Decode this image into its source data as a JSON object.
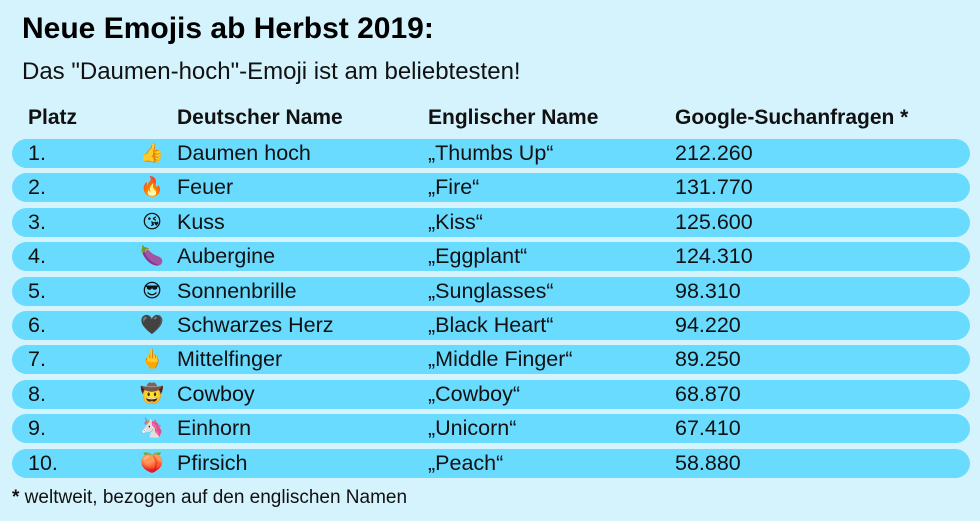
{
  "title": "Neue Emojis ab Herbst 2019:",
  "subtitle": "Das \"Daumen-hoch\"-Emoji ist am beliebtesten!",
  "chart_data": {
    "type": "table",
    "columns": [
      "Platz",
      "Deutscher Name",
      "Englischer Name",
      "Google-Suchanfragen *"
    ],
    "rows": [
      {
        "rank": "1.",
        "emoji": "👍",
        "emoji_icon": "thumbs-up-icon",
        "de": "Daumen hoch",
        "en": "„Thumbs Up“",
        "value": "212.260"
      },
      {
        "rank": "2.",
        "emoji": "🔥",
        "emoji_icon": "fire-icon",
        "de": "Feuer",
        "en": "„Fire“",
        "value": "131.770"
      },
      {
        "rank": "3.",
        "emoji": "😘",
        "emoji_icon": "kiss-icon",
        "de": "Kuss",
        "en": "„Kiss“",
        "value": "125.600"
      },
      {
        "rank": "4.",
        "emoji": "🍆",
        "emoji_icon": "eggplant-icon",
        "de": "Aubergine",
        "en": "„Eggplant“",
        "value": "124.310"
      },
      {
        "rank": "5.",
        "emoji": "😎",
        "emoji_icon": "sunglasses-icon",
        "de": "Sonnenbrille",
        "en": "„Sunglasses“",
        "value": "98.310"
      },
      {
        "rank": "6.",
        "emoji": "🖤",
        "emoji_icon": "black-heart-icon",
        "de": "Schwarzes Herz",
        "en": "„Black Heart“",
        "value": "94.220"
      },
      {
        "rank": "7.",
        "emoji": "🖕",
        "emoji_icon": "middle-finger-icon",
        "de": "Mittelfinger",
        "en": "„Middle Finger“",
        "value": "89.250"
      },
      {
        "rank": "8.",
        "emoji": "🤠",
        "emoji_icon": "cowboy-icon",
        "de": "Cowboy",
        "en": "„Cowboy“",
        "value": "68.870"
      },
      {
        "rank": "9.",
        "emoji": "🦄",
        "emoji_icon": "unicorn-icon",
        "de": "Einhorn",
        "en": "„Unicorn“",
        "value": "67.410"
      },
      {
        "rank": "10.",
        "emoji": "🍑",
        "emoji_icon": "peach-icon",
        "de": "Pfirsich",
        "en": "„Peach“",
        "value": "58.880"
      }
    ]
  },
  "footnote": {
    "star": "*",
    "text": " weltweit, bezogen auf den englischen Namen"
  },
  "colors": {
    "background": "#d5f3fd",
    "row": "#68dbff"
  }
}
